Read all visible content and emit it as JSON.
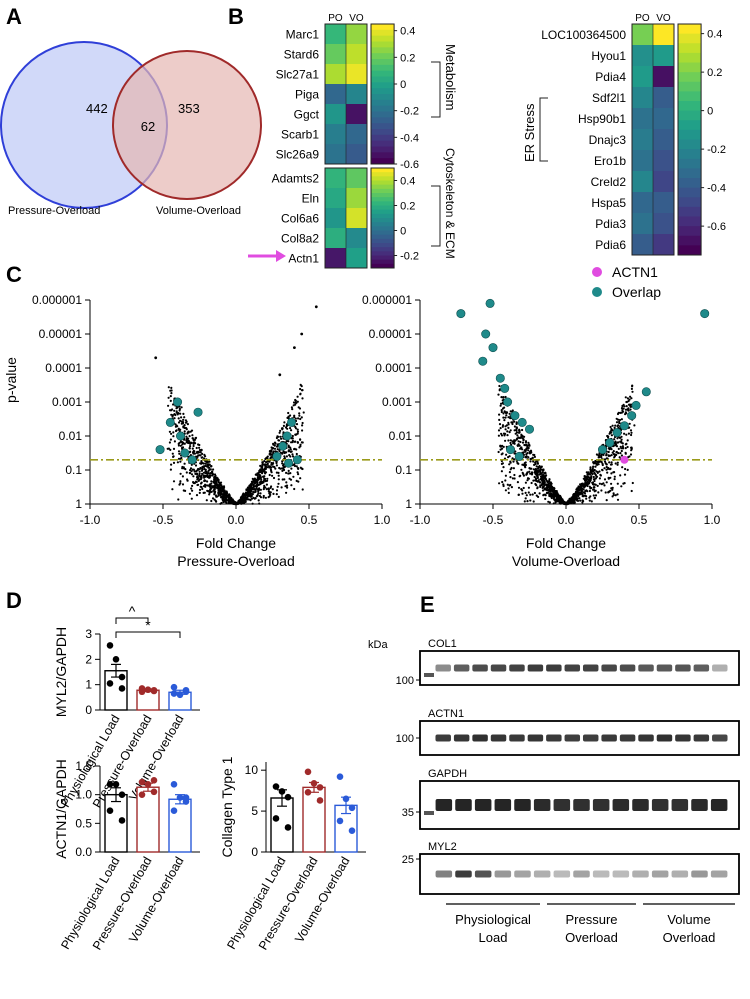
{
  "panels": {
    "A": "A",
    "B": "B",
    "C": "C",
    "D": "D",
    "E": "E"
  },
  "venn": {
    "left_count": "442",
    "overlap_count": "62",
    "right_count": "353",
    "left_label": "Pressure-Overload",
    "right_label": "Volume-Overload",
    "left_color": "#2f3fd8",
    "right_color": "#a02a2a"
  },
  "heatmap": {
    "col_headers": [
      "PO",
      "VO"
    ],
    "metabolism_genes": [
      "Marc1",
      "Stard6",
      "Slc27a1",
      "Piga",
      "Ggct",
      "Scarb1",
      "Slc26a9"
    ],
    "metabolism_values": [
      [
        0.1,
        0.28
      ],
      [
        0.2,
        0.35
      ],
      [
        0.32,
        0.42
      ],
      [
        -0.25,
        -0.12
      ],
      [
        -0.05,
        -0.55
      ],
      [
        -0.15,
        -0.25
      ],
      [
        -0.2,
        -0.3
      ]
    ],
    "metabolism_scale": [
      "0.4",
      "0.2",
      "0",
      "-0.2",
      "-0.4",
      "-0.6"
    ],
    "metabolism_label": "Metabolism",
    "cyto_genes": [
      "Adamts2",
      "Eln",
      "Col6a6",
      "Col8a2",
      "Actn1"
    ],
    "cyto_values": [
      [
        0.22,
        0.3
      ],
      [
        0.18,
        0.38
      ],
      [
        0.12,
        0.45
      ],
      [
        0.2,
        0.08
      ],
      [
        -0.25,
        0.15
      ]
    ],
    "cyto_scale": [
      "0.4",
      "0.2",
      "0",
      "-0.2"
    ],
    "cyto_label": "Cytoskeleton & ECM",
    "er_genes": [
      "LOC100364500",
      "Hyou1",
      "Pdia4",
      "Sdf2l1",
      "Hsp90b1",
      "Dnajc3",
      "Ero1b",
      "Creld2",
      "Hspa5",
      "Pdia3",
      "Pdia6"
    ],
    "er_values": [
      [
        0.2,
        0.45
      ],
      [
        -0.15,
        -0.1
      ],
      [
        -0.1,
        -0.7
      ],
      [
        -0.2,
        -0.4
      ],
      [
        -0.3,
        -0.35
      ],
      [
        -0.25,
        -0.4
      ],
      [
        -0.3,
        -0.45
      ],
      [
        -0.2,
        -0.5
      ],
      [
        -0.35,
        -0.4
      ],
      [
        -0.3,
        -0.45
      ],
      [
        -0.4,
        -0.55
      ]
    ],
    "er_scale": [
      "0.4",
      "0.2",
      "0",
      "-0.2",
      "-0.4",
      "-0.6"
    ],
    "er_label": "ER Stress"
  },
  "volcano": {
    "ylabel": "p-value",
    "y_ticks": [
      "0.000001",
      "0.00001",
      "0.0001",
      "0.001",
      "0.01",
      "0.1",
      "1"
    ],
    "x_ticks": [
      "-1.0",
      "-0.5",
      "0.0",
      "0.5",
      "1.0"
    ],
    "left_xlabel": [
      "Fold Change",
      "Pressure-Overload"
    ],
    "right_xlabel": [
      "Fold Change",
      "Volume-Overload"
    ],
    "threshold": 0.05,
    "legend": [
      {
        "label": "ACTN1",
        "color": "#e04ce0"
      },
      {
        "label": "Overlap",
        "color": "#1f8a8a"
      }
    ],
    "left_overlap": [
      [
        -0.52,
        1.6
      ],
      [
        -0.45,
        2.4
      ],
      [
        -0.4,
        3.0
      ],
      [
        -0.38,
        2.0
      ],
      [
        -0.35,
        1.5
      ],
      [
        -0.3,
        1.3
      ],
      [
        -0.26,
        2.7
      ],
      [
        0.28,
        1.4
      ],
      [
        0.32,
        1.7
      ],
      [
        0.35,
        2.0
      ],
      [
        0.38,
        2.4
      ],
      [
        0.42,
        1.3
      ],
      [
        0.36,
        1.2
      ]
    ],
    "left_extremes": [
      [
        0.55,
        5.8
      ],
      [
        0.45,
        5.0
      ],
      [
        0.4,
        4.6
      ],
      [
        -0.55,
        4.3
      ],
      [
        0.3,
        3.8
      ]
    ],
    "right_overlap": [
      [
        0.95,
        5.6
      ],
      [
        -0.72,
        5.6
      ],
      [
        -0.52,
        5.9
      ],
      [
        -0.55,
        5.0
      ],
      [
        -0.5,
        4.6
      ],
      [
        -0.57,
        4.2
      ],
      [
        -0.45,
        3.7
      ],
      [
        -0.42,
        3.4
      ],
      [
        -0.4,
        3.0
      ],
      [
        -0.35,
        2.6
      ],
      [
        -0.3,
        2.4
      ],
      [
        -0.25,
        2.2
      ],
      [
        -0.38,
        1.6
      ],
      [
        -0.32,
        1.4
      ],
      [
        0.55,
        3.3
      ],
      [
        0.48,
        2.9
      ],
      [
        0.45,
        2.6
      ],
      [
        0.4,
        2.3
      ],
      [
        0.35,
        2.1
      ],
      [
        0.3,
        1.8
      ],
      [
        0.25,
        1.6
      ]
    ],
    "right_actn1": [
      0.4,
      1.3
    ]
  },
  "bars": {
    "myl2": {
      "ylabel": "MYL2/GAPDH",
      "yticks": [
        "0",
        "1",
        "2",
        "3"
      ],
      "ymax": 3,
      "values": [
        1.55,
        0.78,
        0.7
      ],
      "errs": [
        0.25,
        0.05,
        0.08
      ],
      "points": [
        [
          2.55,
          2.0,
          1.3,
          1.05,
          0.85
        ],
        [
          0.85,
          0.8,
          0.75,
          0.72,
          0.78
        ],
        [
          0.9,
          0.6,
          0.72,
          0.65,
          0.78
        ]
      ],
      "sig": [
        {
          "symbol": "^"
        },
        {
          "symbol": "*"
        }
      ]
    },
    "actn1": {
      "ylabel": "ACTN1/GAPDH",
      "yticks": [
        "0.0",
        "0.5",
        "1.0",
        "1.5"
      ],
      "ymax": 1.5,
      "values": [
        1.0,
        1.13,
        0.92
      ],
      "errs": [
        0.12,
        0.07,
        0.08
      ],
      "points": [
        [
          1.18,
          1.18,
          1.0,
          0.72,
          0.55
        ],
        [
          1.22,
          1.18,
          1.05,
          1.0,
          1.25
        ],
        [
          1.18,
          0.95,
          0.88,
          0.72,
          0.95
        ]
      ]
    },
    "col1": {
      "ylabel": "Collagen Type 1",
      "yticks": [
        "0",
        "5",
        "10"
      ],
      "ymax": 11,
      "values": [
        6.6,
        7.9,
        5.7
      ],
      "errs": [
        1.0,
        0.6,
        1.0
      ],
      "points": [
        [
          8.0,
          7.4,
          6.7,
          4.1,
          3.0
        ],
        [
          9.8,
          8.4,
          7.9,
          7.3,
          6.3
        ],
        [
          9.2,
          6.5,
          5.4,
          3.8,
          2.6
        ]
      ]
    },
    "groups": [
      "Physiological Load",
      "Pressure-Overload",
      "Volume-Overload"
    ],
    "colors": [
      "#000000",
      "#a02a2a",
      "#2a5ad8"
    ]
  },
  "blots": {
    "kda_label": "kDa",
    "strips": [
      {
        "name": "COL1",
        "marker": "100"
      },
      {
        "name": "ACTN1",
        "marker": "100"
      },
      {
        "name": "GAPDH",
        "marker": "35"
      },
      {
        "name": "MYL2",
        "marker": "25"
      }
    ],
    "groups": [
      [
        "Physiological",
        "Load"
      ],
      [
        "Pressure",
        "Overload"
      ],
      [
        "Volume",
        "Overload"
      ]
    ],
    "intensities": {
      "COL1": [
        0.5,
        0.7,
        0.78,
        0.8,
        0.82,
        0.85,
        0.85,
        0.82,
        0.82,
        0.8,
        0.78,
        0.72,
        0.72,
        0.74,
        0.7,
        0.35
      ],
      "ACTN1": [
        0.85,
        0.88,
        0.9,
        0.88,
        0.86,
        0.88,
        0.86,
        0.84,
        0.84,
        0.86,
        0.86,
        0.88,
        0.9,
        0.88,
        0.86,
        0.8
      ],
      "GAPDH": [
        0.95,
        0.95,
        0.95,
        0.95,
        0.95,
        0.92,
        0.9,
        0.9,
        0.9,
        0.92,
        0.92,
        0.9,
        0.9,
        0.92,
        0.95
      ],
      "MYL2": [
        0.55,
        0.85,
        0.75,
        0.45,
        0.4,
        0.35,
        0.3,
        0.4,
        0.3,
        0.3,
        0.35,
        0.4,
        0.35,
        0.45,
        0.4
      ]
    }
  }
}
